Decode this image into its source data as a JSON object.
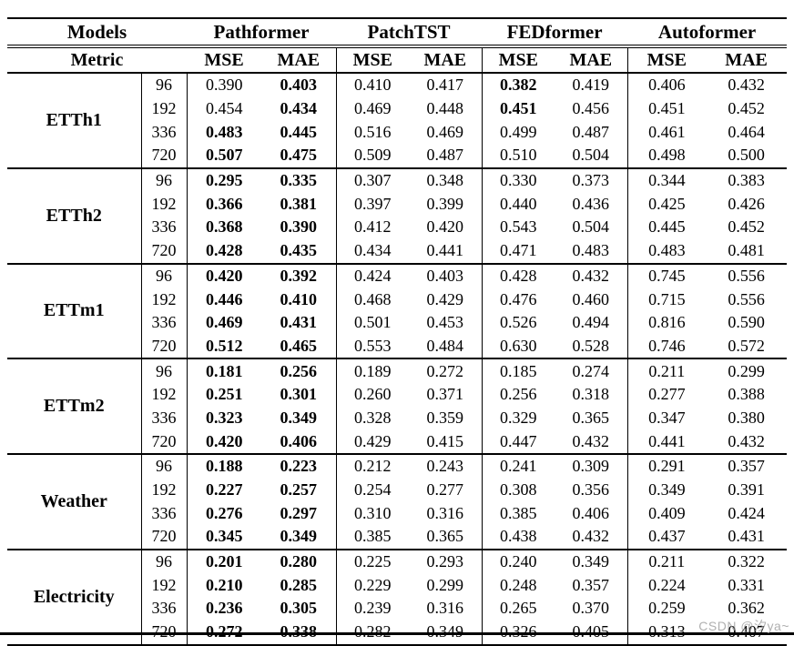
{
  "colors": {
    "text": "#000000",
    "rule": "#000000",
    "watermark": "#969696"
  },
  "watermark": "CSDN @汐ya~",
  "table": {
    "header": {
      "models_label": "Models",
      "metric_label": "Metric",
      "model_names": [
        "Pathformer",
        "PatchTST",
        "FEDformer",
        "Autoformer"
      ],
      "metric_names": [
        "MSE",
        "MAE"
      ]
    },
    "horizons": [
      "96",
      "192",
      "336",
      "720"
    ],
    "datasets": [
      {
        "name": "ETTh1",
        "rows": [
          {
            "horizon": "96",
            "values": [
              "0.390",
              "0.403",
              "0.410",
              "0.417",
              "0.382",
              "0.419",
              "0.406",
              "0.432"
            ],
            "bold": [
              1,
              4
            ]
          },
          {
            "horizon": "192",
            "values": [
              "0.454",
              "0.434",
              "0.469",
              "0.448",
              "0.451",
              "0.456",
              "0.451",
              "0.452"
            ],
            "bold": [
              1,
              4
            ]
          },
          {
            "horizon": "336",
            "values": [
              "0.483",
              "0.445",
              "0.516",
              "0.469",
              "0.499",
              "0.487",
              "0.461",
              "0.464"
            ],
            "bold": [
              0,
              1
            ]
          },
          {
            "horizon": "720",
            "values": [
              "0.507",
              "0.475",
              "0.509",
              "0.487",
              "0.510",
              "0.504",
              "0.498",
              "0.500"
            ],
            "bold": [
              0,
              1
            ]
          }
        ]
      },
      {
        "name": "ETTh2",
        "rows": [
          {
            "horizon": "96",
            "values": [
              "0.295",
              "0.335",
              "0.307",
              "0.348",
              "0.330",
              "0.373",
              "0.344",
              "0.383"
            ],
            "bold": [
              0,
              1
            ]
          },
          {
            "horizon": "192",
            "values": [
              "0.366",
              "0.381",
              "0.397",
              "0.399",
              "0.440",
              "0.436",
              "0.425",
              "0.426"
            ],
            "bold": [
              0,
              1
            ]
          },
          {
            "horizon": "336",
            "values": [
              "0.368",
              "0.390",
              "0.412",
              "0.420",
              "0.543",
              "0.504",
              "0.445",
              "0.452"
            ],
            "bold": [
              0,
              1
            ]
          },
          {
            "horizon": "720",
            "values": [
              "0.428",
              "0.435",
              "0.434",
              "0.441",
              "0.471",
              "0.483",
              "0.483",
              "0.481"
            ],
            "bold": [
              0,
              1
            ]
          }
        ]
      },
      {
        "name": "ETTm1",
        "rows": [
          {
            "horizon": "96",
            "values": [
              "0.420",
              "0.392",
              "0.424",
              "0.403",
              "0.428",
              "0.432",
              "0.745",
              "0.556"
            ],
            "bold": [
              0,
              1
            ]
          },
          {
            "horizon": "192",
            "values": [
              "0.446",
              "0.410",
              "0.468",
              "0.429",
              "0.476",
              "0.460",
              "0.715",
              "0.556"
            ],
            "bold": [
              0,
              1
            ]
          },
          {
            "horizon": "336",
            "values": [
              "0.469",
              "0.431",
              "0.501",
              "0.453",
              "0.526",
              "0.494",
              "0.816",
              "0.590"
            ],
            "bold": [
              0,
              1
            ]
          },
          {
            "horizon": "720",
            "values": [
              "0.512",
              "0.465",
              "0.553",
              "0.484",
              "0.630",
              "0.528",
              "0.746",
              "0.572"
            ],
            "bold": [
              0,
              1
            ]
          }
        ]
      },
      {
        "name": "ETTm2",
        "rows": [
          {
            "horizon": "96",
            "values": [
              "0.181",
              "0.256",
              "0.189",
              "0.272",
              "0.185",
              "0.274",
              "0.211",
              "0.299"
            ],
            "bold": [
              0,
              1
            ]
          },
          {
            "horizon": "192",
            "values": [
              "0.251",
              "0.301",
              "0.260",
              "0.371",
              "0.256",
              "0.318",
              "0.277",
              "0.388"
            ],
            "bold": [
              0,
              1
            ]
          },
          {
            "horizon": "336",
            "values": [
              "0.323",
              "0.349",
              "0.328",
              "0.359",
              "0.329",
              "0.365",
              "0.347",
              "0.380"
            ],
            "bold": [
              0,
              1
            ]
          },
          {
            "horizon": "720",
            "values": [
              "0.420",
              "0.406",
              "0.429",
              "0.415",
              "0.447",
              "0.432",
              "0.441",
              "0.432"
            ],
            "bold": [
              0,
              1
            ]
          }
        ]
      },
      {
        "name": "Weather",
        "rows": [
          {
            "horizon": "96",
            "values": [
              "0.188",
              "0.223",
              "0.212",
              "0.243",
              "0.241",
              "0.309",
              "0.291",
              "0.357"
            ],
            "bold": [
              0,
              1
            ]
          },
          {
            "horizon": "192",
            "values": [
              "0.227",
              "0.257",
              "0.254",
              "0.277",
              "0.308",
              "0.356",
              "0.349",
              "0.391"
            ],
            "bold": [
              0,
              1
            ]
          },
          {
            "horizon": "336",
            "values": [
              "0.276",
              "0.297",
              "0.310",
              "0.316",
              "0.385",
              "0.406",
              "0.409",
              "0.424"
            ],
            "bold": [
              0,
              1
            ]
          },
          {
            "horizon": "720",
            "values": [
              "0.345",
              "0.349",
              "0.385",
              "0.365",
              "0.438",
              "0.432",
              "0.437",
              "0.431"
            ],
            "bold": [
              0,
              1
            ]
          }
        ]
      },
      {
        "name": "Electricity",
        "rows": [
          {
            "horizon": "96",
            "values": [
              "0.201",
              "0.280",
              "0.225",
              "0.293",
              "0.240",
              "0.349",
              "0.211",
              "0.322"
            ],
            "bold": [
              0,
              1
            ]
          },
          {
            "horizon": "192",
            "values": [
              "0.210",
              "0.285",
              "0.229",
              "0.299",
              "0.248",
              "0.357",
              "0.224",
              "0.331"
            ],
            "bold": [
              0,
              1
            ]
          },
          {
            "horizon": "336",
            "values": [
              "0.236",
              "0.305",
              "0.239",
              "0.316",
              "0.265",
              "0.370",
              "0.259",
              "0.362"
            ],
            "bold": [
              0,
              1
            ]
          },
          {
            "horizon": "720",
            "values": [
              "0.272",
              "0.338",
              "0.282",
              "0.349",
              "0.326",
              "0.405",
              "0.313",
              "0.407"
            ],
            "bold": [
              0,
              1
            ]
          }
        ]
      }
    ]
  }
}
